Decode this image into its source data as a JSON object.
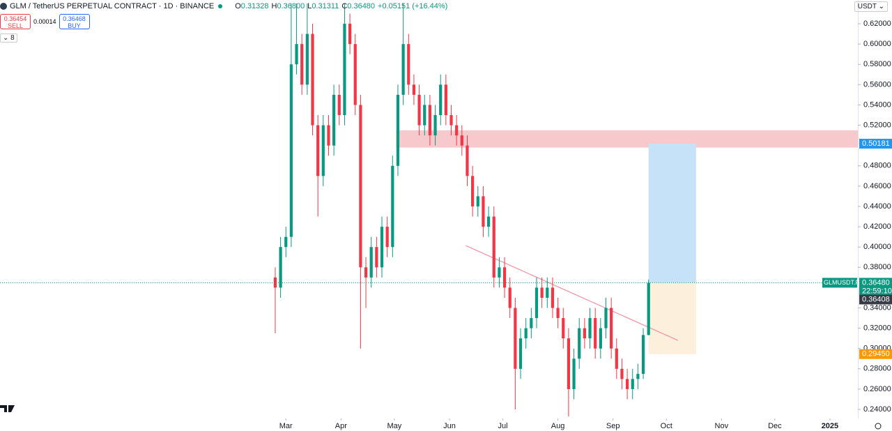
{
  "header": {
    "symbol": "GLM / TetherUS PERPETUAL CONTRACT · 1D · BINANCE",
    "ohlc": [
      {
        "label": "O",
        "value": "0.31328"
      },
      {
        "label": "H",
        "value": "0.36800"
      },
      {
        "label": "L",
        "value": "0.31311"
      },
      {
        "label": "C",
        "value": "0.36480"
      }
    ],
    "change": "+0.05151 (+16.44%)"
  },
  "trade": {
    "sell_price": "0.36454",
    "sell_label": "SELL",
    "spread": "0.00014",
    "buy_price": "0.36468",
    "buy_label": "BUY"
  },
  "indicators_toggle": "8",
  "currency": "USDT",
  "chart_data": {
    "type": "candlestick",
    "x": [
      -6,
      -3,
      0,
      3,
      6,
      9,
      12,
      15,
      18,
      21,
      24,
      27,
      30,
      33,
      36,
      39,
      42,
      45,
      48,
      51,
      54,
      57,
      60,
      63,
      66,
      69,
      72,
      75,
      78,
      81,
      84,
      87,
      90,
      93,
      96,
      99,
      102,
      105,
      108,
      111,
      114,
      117,
      120,
      123,
      126,
      129,
      132,
      135,
      138,
      141,
      144,
      147,
      150,
      153,
      156,
      159,
      162,
      165,
      168,
      171,
      174,
      177,
      180,
      183,
      186,
      189,
      192,
      195,
      198,
      201,
      204
    ],
    "open": [
      0.37,
      0.36,
      0.4,
      0.41,
      0.58,
      0.6,
      0.56,
      0.61,
      0.52,
      0.47,
      0.52,
      0.5,
      0.55,
      0.53,
      0.62,
      0.6,
      0.54,
      0.38,
      0.37,
      0.4,
      0.38,
      0.42,
      0.4,
      0.48,
      0.55,
      0.6,
      0.56,
      0.55,
      0.52,
      0.54,
      0.51,
      0.53,
      0.56,
      0.53,
      0.52,
      0.51,
      0.5,
      0.47,
      0.44,
      0.45,
      0.42,
      0.43,
      0.37,
      0.38,
      0.36,
      0.34,
      0.28,
      0.31,
      0.32,
      0.33,
      0.36,
      0.35,
      0.36,
      0.34,
      0.33,
      0.31,
      0.26,
      0.29,
      0.32,
      0.31,
      0.33,
      0.3,
      0.32,
      0.34,
      0.3,
      0.28,
      0.27,
      0.26,
      0.27,
      0.275,
      0.31328
    ],
    "high": [
      0.38,
      0.41,
      0.42,
      0.64,
      0.64,
      0.61,
      0.64,
      0.62,
      0.53,
      0.53,
      0.53,
      0.56,
      0.56,
      0.64,
      0.63,
      0.61,
      0.55,
      0.39,
      0.41,
      0.41,
      0.43,
      0.43,
      0.49,
      0.56,
      0.64,
      0.61,
      0.57,
      0.56,
      0.55,
      0.55,
      0.54,
      0.57,
      0.57,
      0.54,
      0.53,
      0.52,
      0.51,
      0.48,
      0.46,
      0.46,
      0.44,
      0.44,
      0.39,
      0.39,
      0.37,
      0.35,
      0.32,
      0.33,
      0.34,
      0.37,
      0.37,
      0.37,
      0.37,
      0.35,
      0.34,
      0.32,
      0.3,
      0.33,
      0.33,
      0.34,
      0.34,
      0.33,
      0.35,
      0.35,
      0.31,
      0.29,
      0.28,
      0.28,
      0.285,
      0.32,
      0.368
    ],
    "low": [
      0.315,
      0.35,
      0.39,
      0.4,
      0.57,
      0.55,
      0.55,
      0.51,
      0.43,
      0.46,
      0.49,
      0.49,
      0.52,
      0.52,
      0.59,
      0.53,
      0.3,
      0.34,
      0.36,
      0.37,
      0.37,
      0.39,
      0.39,
      0.47,
      0.54,
      0.55,
      0.54,
      0.51,
      0.51,
      0.5,
      0.5,
      0.52,
      0.52,
      0.51,
      0.5,
      0.49,
      0.46,
      0.43,
      0.43,
      0.41,
      0.41,
      0.36,
      0.36,
      0.35,
      0.33,
      0.24,
      0.27,
      0.3,
      0.31,
      0.32,
      0.34,
      0.34,
      0.33,
      0.32,
      0.3,
      0.233,
      0.25,
      0.28,
      0.3,
      0.3,
      0.29,
      0.29,
      0.31,
      0.29,
      0.27,
      0.26,
      0.25,
      0.25,
      0.26,
      0.27,
      0.31311
    ],
    "close": [
      0.36,
      0.4,
      0.41,
      0.58,
      0.6,
      0.56,
      0.61,
      0.52,
      0.47,
      0.52,
      0.5,
      0.55,
      0.53,
      0.62,
      0.6,
      0.54,
      0.38,
      0.37,
      0.4,
      0.38,
      0.42,
      0.4,
      0.48,
      0.55,
      0.6,
      0.56,
      0.55,
      0.52,
      0.54,
      0.51,
      0.53,
      0.56,
      0.53,
      0.52,
      0.51,
      0.5,
      0.47,
      0.44,
      0.45,
      0.42,
      0.43,
      0.37,
      0.38,
      0.36,
      0.34,
      0.28,
      0.31,
      0.32,
      0.33,
      0.36,
      0.35,
      0.36,
      0.34,
      0.33,
      0.31,
      0.26,
      0.29,
      0.32,
      0.31,
      0.33,
      0.3,
      0.32,
      0.34,
      0.3,
      0.28,
      0.27,
      0.26,
      0.27,
      0.275,
      0.3133,
      0.3648
    ],
    "up_color": "#089981",
    "down_color": "#f23645",
    "xlim": [
      -160.8,
      321.7
    ],
    "xticks": [
      {
        "value": 0,
        "label": "Mar"
      },
      {
        "value": 31,
        "label": "Apr"
      },
      {
        "value": 61,
        "label": "May"
      },
      {
        "value": 92,
        "label": "Jun"
      },
      {
        "value": 122,
        "label": "Jul"
      },
      {
        "value": 153,
        "label": "Aug"
      },
      {
        "value": 184,
        "label": "Sep"
      },
      {
        "value": 214,
        "label": "Oct"
      },
      {
        "value": 245,
        "label": "Nov"
      },
      {
        "value": 275,
        "label": "Dec"
      },
      {
        "value": 306,
        "label": "2025"
      }
    ],
    "ylim": [
      0.2311,
      0.6434
    ],
    "yticks": [
      {
        "value": 0.24,
        "label": "0.24000"
      },
      {
        "value": 0.26,
        "label": "0.26000"
      },
      {
        "value": 0.28,
        "label": "0.28000"
      },
      {
        "value": 0.3,
        "label": "0.30000"
      },
      {
        "value": 0.32,
        "label": "0.32000"
      },
      {
        "value": 0.34,
        "label": "0.34000"
      },
      {
        "value": 0.38,
        "label": "0.38000"
      },
      {
        "value": 0.4,
        "label": "0.40000"
      },
      {
        "value": 0.42,
        "label": "0.42000"
      },
      {
        "value": 0.44,
        "label": "0.44000"
      },
      {
        "value": 0.46,
        "label": "0.46000"
      },
      {
        "value": 0.48,
        "label": "0.48000"
      },
      {
        "value": 0.52,
        "label": "0.52000"
      },
      {
        "value": 0.54,
        "label": "0.54000"
      },
      {
        "value": 0.56,
        "label": "0.56000"
      },
      {
        "value": 0.58,
        "label": "0.58000"
      },
      {
        "value": 0.6,
        "label": "0.60000"
      },
      {
        "value": 0.62,
        "label": "0.62000"
      }
    ],
    "zones": [
      {
        "x": [
          62,
          321.7
        ],
        "y": [
          0.498,
          0.515
        ],
        "color": "#f7c9cc"
      },
      {
        "x": [
          204,
          230.7
        ],
        "y": [
          0.3648,
          0.50181
        ],
        "color": "#c6e2f9"
      },
      {
        "x": [
          204,
          230.7
        ],
        "y": [
          0.2945,
          0.3648
        ],
        "color": "#fcefdc"
      }
    ],
    "trendline": {
      "x": [
        101.2,
        220.5
      ],
      "y": [
        0.4014,
        0.308
      ],
      "color": "#f48fa0"
    },
    "current_price": {
      "value": 0.3648,
      "label": "0.36480",
      "symbol": "GLMUSDT.P",
      "countdown": "22:59:10",
      "color": "#089981"
    },
    "price_labels": [
      {
        "value": 0.50181,
        "label": "0.50181",
        "color": "#2196f3"
      },
      {
        "value": 0.36408,
        "label": "0.36408",
        "color": "#363a45"
      },
      {
        "value": 0.2945,
        "label": "0.29450",
        "color": "#ff9800"
      }
    ]
  }
}
